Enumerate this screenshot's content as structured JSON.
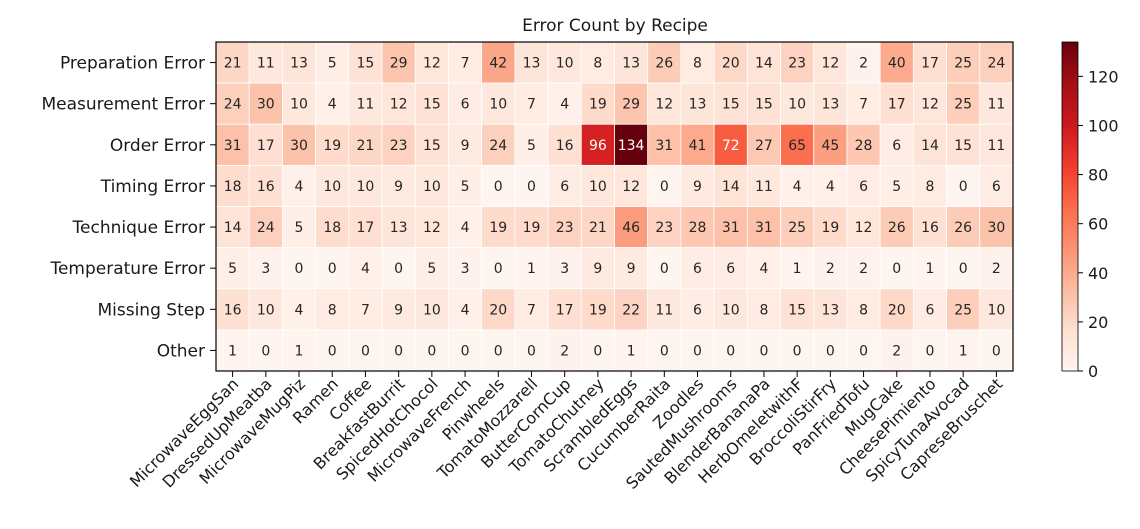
{
  "chart_data": {
    "type": "heatmap",
    "title": "Error Count by Recipe",
    "xlabel": "",
    "ylabel": "",
    "rows": [
      "Preparation Error",
      "Measurement Error",
      "Order Error",
      "Timing Error",
      "Technique Error",
      "Temperature Error",
      "Missing Step",
      "Other"
    ],
    "columns": [
      "MicrowaveEggSan",
      "DressedUpMeatba",
      "MicrowaveMugPiz",
      "Ramen",
      "Coffee",
      "BreakfastBurrit",
      "SpicedHotChocol",
      "MicrowaveFrench",
      "Pinwheels",
      "TomatoMozzarell",
      "ButterCornCup",
      "TomatoChutney",
      "ScrambledEggs",
      "CucumberRaita",
      "Zoodles",
      "SautedMushrooms",
      "BlenderBananaPa",
      "HerbOmeletwithF",
      "BroccoliStirFry",
      "PanFriedTofu",
      "MugCake",
      "CheesePimiento",
      "SpicyTunaAvocad",
      "CapreseBruschet"
    ],
    "values": [
      [
        21,
        11,
        13,
        5,
        15,
        29,
        12,
        7,
        42,
        13,
        10,
        8,
        13,
        26,
        8,
        20,
        14,
        23,
        12,
        2,
        40,
        17,
        25,
        24
      ],
      [
        24,
        30,
        10,
        4,
        11,
        12,
        15,
        6,
        10,
        7,
        4,
        19,
        29,
        12,
        13,
        15,
        15,
        10,
        13,
        7,
        17,
        12,
        25,
        11
      ],
      [
        31,
        17,
        30,
        19,
        21,
        23,
        15,
        9,
        24,
        5,
        16,
        96,
        134,
        31,
        41,
        72,
        27,
        65,
        45,
        28,
        6,
        14,
        15,
        11
      ],
      [
        18,
        16,
        4,
        10,
        10,
        9,
        10,
        5,
        0,
        0,
        6,
        10,
        12,
        0,
        9,
        14,
        11,
        4,
        4,
        6,
        5,
        8,
        0,
        6
      ],
      [
        14,
        24,
        5,
        18,
        17,
        13,
        12,
        4,
        19,
        19,
        23,
        21,
        46,
        23,
        28,
        31,
        31,
        25,
        19,
        12,
        26,
        16,
        26,
        30
      ],
      [
        5,
        3,
        0,
        0,
        4,
        0,
        5,
        3,
        0,
        1,
        3,
        9,
        9,
        0,
        6,
        6,
        4,
        1,
        2,
        2,
        0,
        1,
        0,
        2
      ],
      [
        16,
        10,
        4,
        8,
        7,
        9,
        10,
        4,
        20,
        7,
        17,
        19,
        22,
        11,
        6,
        10,
        8,
        15,
        13,
        8,
        20,
        6,
        25,
        10
      ],
      [
        1,
        0,
        1,
        0,
        0,
        0,
        0,
        0,
        0,
        0,
        2,
        0,
        1,
        0,
        0,
        0,
        0,
        0,
        0,
        0,
        2,
        0,
        1,
        0
      ]
    ],
    "colorscale": "Reds",
    "vmin": 0,
    "vmax": 134,
    "colorbar_ticks": [
      0,
      20,
      40,
      60,
      80,
      100,
      120
    ],
    "grid": false,
    "colorbar_placement": "right"
  }
}
